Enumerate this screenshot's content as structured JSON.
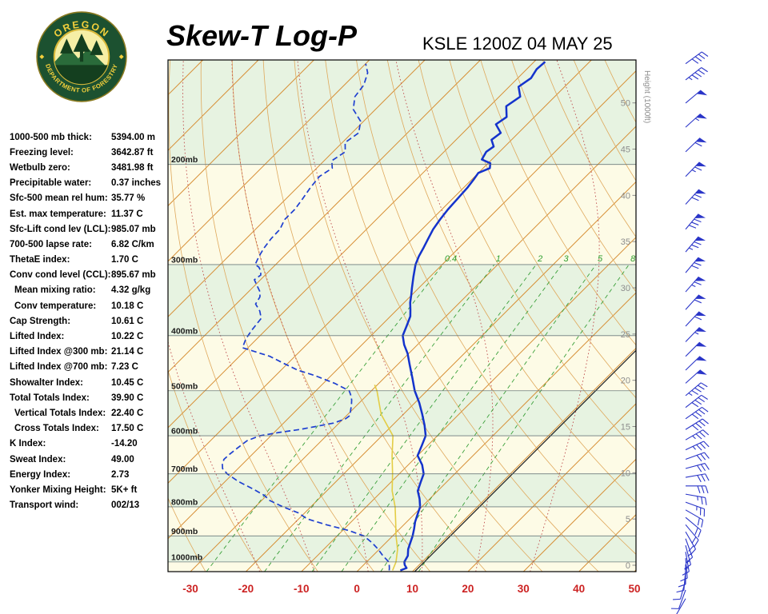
{
  "header": {
    "title": "Skew-T Log-P",
    "station_line": "KSLE 1200Z 04 MAY 25",
    "logo": {
      "org_top": "OREGON",
      "org_bottom": "DEPARTMENT OF FORESTRY"
    }
  },
  "indices": [
    {
      "label": "1000-500 mb thick:",
      "value": "5394.00 m",
      "indent": false
    },
    {
      "label": "Freezing level:",
      "value": "3642.87 ft",
      "indent": false
    },
    {
      "label": "Wetbulb zero:",
      "value": "3481.98 ft",
      "indent": false
    },
    {
      "label": "Precipitable water:",
      "value": "0.37 inches",
      "indent": false
    },
    {
      "label": "Sfc-500 mean rel hum:",
      "value": "35.77 %",
      "indent": false
    },
    {
      "label": "Est. max temperature:",
      "value": "11.37 C",
      "indent": false
    },
    {
      "label": "Sfc-Lift cond lev (LCL):",
      "value": "985.07 mb",
      "indent": false
    },
    {
      "label": "700-500 lapse rate:",
      "value": "6.82 C/km",
      "indent": false
    },
    {
      "label": "ThetaE index:",
      "value": "1.70 C",
      "indent": false
    },
    {
      "label": "Conv cond level (CCL):",
      "value": "895.67 mb",
      "indent": false
    },
    {
      "label": "Mean mixing ratio:",
      "value": "4.32 g/kg",
      "indent": true
    },
    {
      "label": "Conv temperature:",
      "value": "10.18 C",
      "indent": true
    },
    {
      "label": "Cap Strength:",
      "value": "10.61 C",
      "indent": false
    },
    {
      "label": "Lifted Index:",
      "value": "10.22 C",
      "indent": false
    },
    {
      "label": "Lifted Index @300 mb:",
      "value": "21.14 C",
      "indent": false
    },
    {
      "label": "Lifted Index @700 mb:",
      "value": "7.23 C",
      "indent": false
    },
    {
      "label": "Showalter Index:",
      "value": "10.45 C",
      "indent": false
    },
    {
      "label": "Total Totals Index:",
      "value": "39.90 C",
      "indent": false
    },
    {
      "label": "Vertical Totals Index:",
      "value": "22.40 C",
      "indent": true
    },
    {
      "label": "Cross Totals Index:",
      "value": "17.50 C",
      "indent": true
    },
    {
      "label": "K Index:",
      "value": "-14.20",
      "indent": false
    },
    {
      "label": "Sweat Index:",
      "value": "49.00",
      "indent": false
    },
    {
      "label": "Energy Index:",
      "value": "2.73",
      "indent": false
    },
    {
      "label": "Yonker Mixing Height:",
      "value": "5K+ ft",
      "indent": false
    },
    {
      "label": "Transport wind:",
      "value": "002/13",
      "indent": false
    }
  ],
  "chart_data": {
    "type": "skew-t-log-p-sounding",
    "title": "Skew-T Log-P KSLE 1200Z 04 MAY 25",
    "p_top_mb": 131,
    "p_bot_mb": 1040,
    "skew_deg": 45,
    "pressure_lines_mb": [
      200,
      300,
      400,
      500,
      600,
      700,
      800,
      900,
      1000
    ],
    "pressure_labels": [
      "200mb",
      "300mb",
      "400mb",
      "500mb",
      "600mb",
      "700mb",
      "800mb",
      "900mb",
      "1000mb"
    ],
    "temp_axis_c": [
      -30,
      -20,
      -10,
      0,
      10,
      20,
      30,
      40,
      50
    ],
    "isotherm_step_c": 10,
    "dry_adiabat_range_c": [
      -30,
      250
    ],
    "dry_adiabat_step_c": 10,
    "moist_adiabats_c": [
      -20,
      -10,
      0,
      10,
      20,
      30
    ],
    "mixing_ratio_lines_gkg": [
      0.4,
      1,
      2,
      3,
      5,
      8
    ],
    "mixing_ratio_label_pressure_mb": 300,
    "reference_line_temp_c": 10.4,
    "height_ticks_kft": [
      0,
      5,
      10,
      15,
      20,
      25,
      30,
      35,
      40,
      45,
      50
    ],
    "height_axis_label": "Height (1000ft)",
    "temperature_profile_p_t": [
      [
        1035,
        7.6
      ],
      [
        1025,
        8.3
      ],
      [
        1012,
        7.4
      ],
      [
        1000,
        6.8
      ],
      [
        975,
        6.3
      ],
      [
        950,
        5.2
      ],
      [
        925,
        4.4
      ],
      [
        900,
        3.6
      ],
      [
        875,
        2.6
      ],
      [
        850,
        1.5
      ],
      [
        825,
        0.6
      ],
      [
        800,
        -0.3
      ],
      [
        775,
        -1.8
      ],
      [
        750,
        -3.6
      ],
      [
        725,
        -4.6
      ],
      [
        700,
        -5.6
      ],
      [
        675,
        -7.5
      ],
      [
        650,
        -10.0
      ],
      [
        625,
        -11.0
      ],
      [
        600,
        -12.1
      ],
      [
        575,
        -14.2
      ],
      [
        550,
        -16.6
      ],
      [
        525,
        -19.2
      ],
      [
        500,
        -22.2
      ],
      [
        475,
        -24.9
      ],
      [
        450,
        -27.8
      ],
      [
        430,
        -30.2
      ],
      [
        415,
        -32.4
      ],
      [
        400,
        -34.3
      ],
      [
        385,
        -35.3
      ],
      [
        370,
        -36.4
      ],
      [
        360,
        -37.6
      ],
      [
        350,
        -38.9
      ],
      [
        340,
        -40.0
      ],
      [
        330,
        -41.2
      ],
      [
        315,
        -43.0
      ],
      [
        300,
        -44.8
      ],
      [
        290,
        -45.7
      ],
      [
        280,
        -46.4
      ],
      [
        270,
        -47.2
      ],
      [
        260,
        -48.0
      ],
      [
        250,
        -48.5
      ],
      [
        240,
        -48.9
      ],
      [
        230,
        -49.1
      ],
      [
        220,
        -49.3
      ],
      [
        212,
        -49.7
      ],
      [
        207,
        -50.0
      ],
      [
        203,
        -48.8
      ],
      [
        199,
        -49.6
      ],
      [
        196,
        -51.8
      ],
      [
        190,
        -52.4
      ],
      [
        186,
        -52.0
      ],
      [
        181,
        -53.6
      ],
      [
        176,
        -53.2
      ],
      [
        170,
        -55.6
      ],
      [
        165,
        -55.0
      ],
      [
        158,
        -57.0
      ],
      [
        152,
        -56.2
      ],
      [
        146,
        -58.3
      ],
      [
        141,
        -57.6
      ],
      [
        136,
        -58.2
      ],
      [
        132,
        -58.0
      ]
    ],
    "dewpoint_profile_p_t": [
      [
        1035,
        5.6
      ],
      [
        1025,
        5.2
      ],
      [
        1012,
        4.6
      ],
      [
        1000,
        4.0
      ],
      [
        975,
        1.8
      ],
      [
        950,
        -0.2
      ],
      [
        925,
        -2.5
      ],
      [
        900,
        -5.2
      ],
      [
        880,
        -9.0
      ],
      [
        860,
        -14.0
      ],
      [
        840,
        -18.5
      ],
      [
        820,
        -21.1
      ],
      [
        800,
        -25.0
      ],
      [
        780,
        -28.5
      ],
      [
        764,
        -30.4
      ],
      [
        745,
        -33.5
      ],
      [
        722,
        -37.6
      ],
      [
        700,
        -41.0
      ],
      [
        685,
        -42.8
      ],
      [
        672,
        -43.7
      ],
      [
        660,
        -44.2
      ],
      [
        646,
        -44.1
      ],
      [
        630,
        -43.8
      ],
      [
        612,
        -43.4
      ],
      [
        600,
        -42.0
      ],
      [
        592,
        -39.1
      ],
      [
        585,
        -36.0
      ],
      [
        578,
        -33.6
      ],
      [
        570,
        -31.0
      ],
      [
        560,
        -29.6
      ],
      [
        553,
        -29.4
      ],
      [
        540,
        -30.3
      ],
      [
        530,
        -31.0
      ],
      [
        519,
        -31.9
      ],
      [
        510,
        -32.8
      ],
      [
        500,
        -34.0
      ],
      [
        485,
        -38.0
      ],
      [
        470,
        -43.0
      ],
      [
        460,
        -47.0
      ],
      [
        448,
        -50.6
      ],
      [
        435,
        -54.5
      ],
      [
        420,
        -61.0
      ],
      [
        405,
        -62.0
      ],
      [
        390,
        -62.5
      ],
      [
        373,
        -62.9
      ],
      [
        362,
        -64.5
      ],
      [
        352,
        -66.5
      ],
      [
        342,
        -67.0
      ],
      [
        335,
        -67.9
      ],
      [
        327,
        -69.5
      ],
      [
        319,
        -71.1
      ],
      [
        313,
        -70.8
      ],
      [
        308,
        -71.5
      ],
      [
        303,
        -72.6
      ],
      [
        300,
        -73.7
      ],
      [
        290,
        -74.5
      ],
      [
        280,
        -75.1
      ],
      [
        270,
        -75.5
      ],
      [
        260,
        -75.6
      ],
      [
        250,
        -76.5
      ],
      [
        240,
        -76.5
      ],
      [
        230,
        -77.0
      ],
      [
        220,
        -77.6
      ],
      [
        210,
        -78.0
      ],
      [
        203,
        -77.2
      ],
      [
        197,
        -78.6
      ],
      [
        190,
        -77.8
      ],
      [
        183,
        -79.5
      ],
      [
        176,
        -78.8
      ],
      [
        168,
        -80.5
      ],
      [
        160,
        -84.0
      ],
      [
        152,
        -86.0
      ],
      [
        145,
        -86.5
      ],
      [
        138,
        -88.0
      ],
      [
        133,
        -90.0
      ]
    ],
    "wetbulb_profile_p_t": [
      [
        1035,
        6.2
      ],
      [
        1000,
        5.3
      ],
      [
        950,
        3.3
      ],
      [
        900,
        0.6
      ],
      [
        850,
        -2.0
      ],
      [
        800,
        -4.8
      ],
      [
        750,
        -8.2
      ],
      [
        700,
        -11.2
      ],
      [
        650,
        -14.6
      ],
      [
        600,
        -18.0
      ],
      [
        550,
        -24.0
      ],
      [
        500,
        -29.0
      ],
      [
        488,
        -30.5
      ]
    ],
    "winds_p_dir_spd": [
      [
        1160,
        210,
        8
      ],
      [
        1120,
        200,
        10
      ],
      [
        1075,
        195,
        10
      ],
      [
        1035,
        185,
        10
      ],
      [
        1010,
        180,
        12
      ],
      [
        985,
        175,
        12
      ],
      [
        960,
        170,
        15
      ],
      [
        935,
        165,
        15
      ],
      [
        910,
        160,
        15
      ],
      [
        885,
        150,
        18
      ],
      [
        860,
        140,
        20
      ],
      [
        835,
        130,
        20
      ],
      [
        810,
        120,
        22
      ],
      [
        785,
        110,
        25
      ],
      [
        760,
        100,
        25
      ],
      [
        735,
        90,
        28
      ],
      [
        710,
        80,
        30
      ],
      [
        685,
        75,
        30
      ],
      [
        660,
        70,
        32
      ],
      [
        635,
        65,
        35
      ],
      [
        610,
        60,
        35
      ],
      [
        585,
        58,
        38
      ],
      [
        560,
        55,
        40
      ],
      [
        535,
        52,
        42
      ],
      [
        510,
        50,
        45
      ],
      [
        485,
        48,
        48
      ],
      [
        460,
        46,
        50
      ],
      [
        435,
        45,
        52
      ],
      [
        410,
        44,
        55
      ],
      [
        385,
        43,
        58
      ],
      [
        360,
        42,
        62
      ],
      [
        335,
        41,
        65
      ],
      [
        310,
        40,
        70
      ],
      [
        285,
        40,
        75
      ],
      [
        260,
        40,
        78
      ],
      [
        235,
        42,
        72
      ],
      [
        210,
        44,
        65
      ],
      [
        190,
        46,
        60
      ],
      [
        172,
        48,
        55
      ],
      [
        156,
        50,
        50
      ],
      [
        142,
        52,
        45
      ],
      [
        133,
        54,
        40
      ]
    ],
    "colors": {
      "band_green": "#e7f3e1",
      "band_cream": "#fdfbe6",
      "pressure_line": "#5f6f72",
      "isotherm": "#d68e34",
      "dry_adiabat": "#dfa85c",
      "moist_adiabat": "#c05050",
      "mixing_ratio": "#3aa03a",
      "mixing_label": "#2e9e2e",
      "temperature": "#1433cc",
      "dewpoint": "#1e3fd0",
      "wetbulb": "#e3cd45",
      "reference_line": "#1a1a1a",
      "height_label": "#8c8c8c",
      "pressure_label": "#1a1a1a",
      "temp_axis": "#cc2222",
      "wind_barb": "#2a35c8",
      "border": "#000000"
    }
  }
}
